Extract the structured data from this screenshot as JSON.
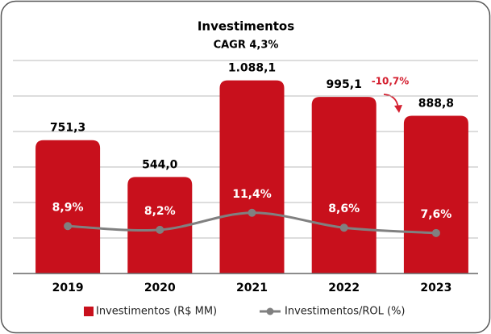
{
  "chart_data": {
    "type": "bar-line",
    "title": "Investimentos",
    "subtitle": "CAGR 4,3%",
    "categories": [
      "2019",
      "2020",
      "2021",
      "2022",
      "2023"
    ],
    "series": [
      {
        "name": "Investimentos (R$ MM)",
        "type": "bar",
        "color": "#c8101c",
        "values": [
          751.3,
          544.0,
          1088.1,
          995.1,
          888.8
        ],
        "value_labels": [
          "751,3",
          "544,0",
          "1.088,1",
          "995,1",
          "888,8"
        ]
      },
      {
        "name": "Investimentos/ROL (%)",
        "type": "line",
        "axis": "y2",
        "color": "#808080",
        "values": [
          8.9,
          8.2,
          11.4,
          8.6,
          7.6
        ],
        "value_labels": [
          "8,9%",
          "8,2%",
          "11,4%",
          "8,6%",
          "7,6%"
        ]
      }
    ],
    "ylim": [
      0,
      1200
    ],
    "yticks": [
      0,
      200,
      400,
      600,
      800,
      1000,
      1200
    ],
    "y2lim": [
      0,
      40
    ],
    "grid": true,
    "legend": "bottom",
    "annotations": [
      {
        "text": "-10,7%",
        "color": "#d42030"
      }
    ]
  }
}
